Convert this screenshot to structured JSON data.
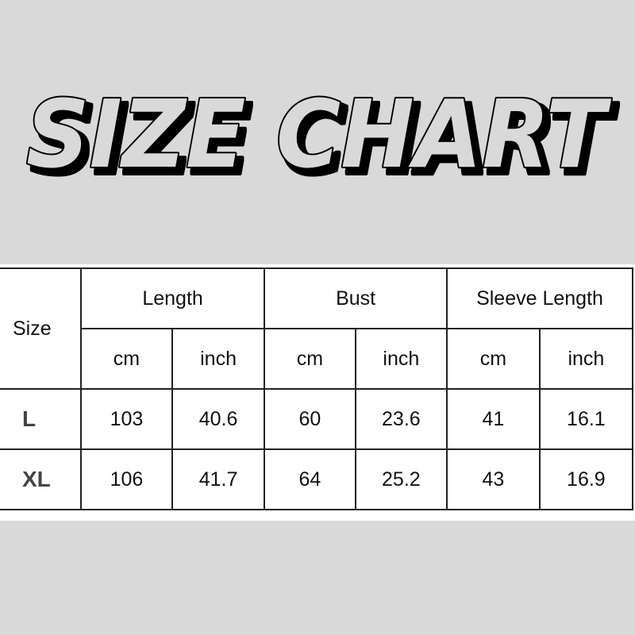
{
  "title": "SIZE CHART",
  "colors": {
    "background": "#d9d9d9",
    "table_background": "#ffffff",
    "outline": "#000000"
  },
  "table": {
    "size_header": "Size",
    "groups": [
      "Length",
      "Bust",
      "Sleeve Length"
    ],
    "units": [
      "cm",
      "inch",
      "cm",
      "inch",
      "cm",
      "inch"
    ],
    "rows": [
      {
        "size": "L",
        "values": [
          "103",
          "40.6",
          "60",
          "23.6",
          "41",
          "16.1"
        ]
      },
      {
        "size": "XL",
        "values": [
          "106",
          "41.7",
          "64",
          "25.2",
          "43",
          "16.9"
        ]
      }
    ]
  }
}
